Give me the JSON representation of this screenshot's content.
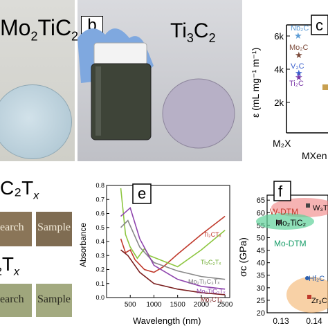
{
  "panel_a": {
    "title_main": "Mo",
    "title_sub1": "2",
    "title_mid": "TiC",
    "title_sub2": "2"
  },
  "panel_b": {
    "label": "b",
    "title_main": "Ti",
    "title_sub1": "3",
    "title_mid": "C",
    "title_sub2": "2"
  },
  "panel_c": {
    "label": "c",
    "y_axis": "ε (mL mg⁻¹ m⁻¹)",
    "y_ticks": [
      "2k",
      "4k",
      "6k"
    ],
    "x_tick": "M₂X",
    "x_axis": "MXen",
    "points": [
      "Nb₂C",
      "Mo₂C",
      "V₂C",
      "Ti₂C"
    ]
  },
  "panel_d": {
    "title1": "C₂T",
    "title1_sub": "x",
    "title2_sub": "2",
    "title2": "T",
    "title2_sub2": "x",
    "text_search": "earch",
    "text_sample": "Sample"
  },
  "panel_e": {
    "label": "e",
    "xlabel": "Wavelength (nm)",
    "ylabel": "Absorbance",
    "series_labels": [
      "Ti₂CTₓ",
      "Ti₃C₂Tₓ",
      "Mo₂Ti₂C₃Tₓ",
      "Mo₂TiC₂Tₓ",
      "Mo₂CTₓ"
    ]
  },
  "panel_f": {
    "label": "f",
    "ylabel": "σc (GPa)",
    "y_ticks": [
      "20",
      "25",
      "30",
      "35",
      "40",
      "45",
      "50",
      "55",
      "60",
      "65"
    ],
    "x_ticks": [
      "0.13",
      "0.14"
    ],
    "group_labels": [
      "W-DTM",
      "Mo₂TiC₂",
      "Mo-DTM",
      "W₃T",
      "Hf₂C",
      "Zr₃C"
    ]
  },
  "chart_data": {
    "type": "line",
    "x": [
      300,
      500,
      1000,
      1500,
      2000,
      2500
    ],
    "xlim": [
      0,
      2600
    ],
    "ylim": [
      0,
      0.8
    ],
    "x_ticks": [
      500,
      1000,
      1500,
      2000,
      2500
    ],
    "y_ticks": [
      0.0,
      0.1,
      0.2,
      0.3,
      0.4,
      0.5,
      0.6,
      0.7,
      0.8
    ],
    "xlabel": "Wavelength (nm)",
    "ylabel": "Absorbance",
    "series": [
      {
        "name": "Ti₂CTₓ",
        "color": "#c0392b",
        "points": [
          [
            300,
            0.42
          ],
          [
            400,
            0.32
          ],
          [
            500,
            0.34
          ],
          [
            600,
            0.27
          ],
          [
            800,
            0.2
          ],
          [
            1000,
            0.18
          ],
          [
            1200,
            0.22
          ],
          [
            1500,
            0.31
          ],
          [
            2000,
            0.45
          ],
          [
            2500,
            0.58
          ]
        ]
      },
      {
        "name": "Ti₃C₂Tₓ",
        "color": "#8dc63f",
        "points": [
          [
            300,
            0.78
          ],
          [
            400,
            0.45
          ],
          [
            500,
            0.36
          ],
          [
            650,
            0.28
          ],
          [
            800,
            0.35
          ],
          [
            900,
            0.3
          ],
          [
            1200,
            0.26
          ],
          [
            1500,
            0.22
          ],
          [
            2000,
            0.34
          ],
          [
            2500,
            0.48
          ]
        ]
      },
      {
        "name": "Mo₂Ti₂C₃Tₓ",
        "color": "#888888",
        "points": [
          [
            300,
            0.5
          ],
          [
            450,
            0.55
          ],
          [
            700,
            0.36
          ],
          [
            1000,
            0.25
          ],
          [
            1500,
            0.19
          ],
          [
            2000,
            0.15
          ],
          [
            2500,
            0.13
          ]
        ]
      },
      {
        "name": "Mo₂TiC₂Tₓ",
        "color": "#8e44ad",
        "points": [
          [
            300,
            0.58
          ],
          [
            500,
            0.64
          ],
          [
            700,
            0.42
          ],
          [
            1000,
            0.23
          ],
          [
            1500,
            0.13
          ],
          [
            2000,
            0.08
          ],
          [
            2500,
            0.06
          ]
        ]
      },
      {
        "name": "Mo₂CTₓ",
        "color": "#7b1f1f",
        "points": [
          [
            300,
            0.34
          ],
          [
            450,
            0.3
          ],
          [
            700,
            0.18
          ],
          [
            1000,
            0.1
          ],
          [
            1500,
            0.06
          ],
          [
            2000,
            0.035
          ],
          [
            2500,
            0.02
          ]
        ]
      }
    ]
  }
}
